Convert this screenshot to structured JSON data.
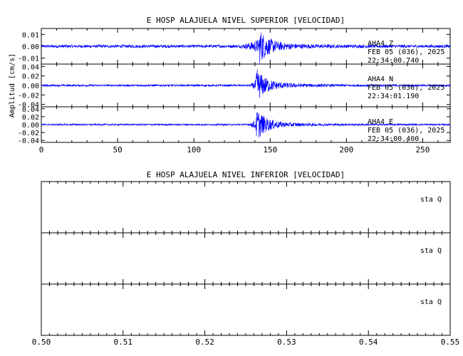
{
  "chart_data": [
    {
      "type": "line",
      "title": "E HOSP ALAJUELA NIVEL SUPERIOR [VELOCIDAD]",
      "ylabel": "Amplitud [cm/s]",
      "xlabel": "",
      "xlim": [
        0,
        268
      ],
      "xticks": [
        "0",
        "50",
        "100",
        "150",
        "200",
        "250"
      ],
      "trace_color": "#0000ff",
      "panels": [
        {
          "channel": "AHA4 Z",
          "date": "FEB 05 (036), 2025",
          "time": "22:34:00.740",
          "ylim": [
            -0.015,
            0.015
          ],
          "yticks": [
            "0.01",
            "0.00",
            "-0.01"
          ],
          "event": {
            "onset_s": 127,
            "peak_s": 143,
            "peak_amp": 0.012,
            "noise_amp": 0.0012,
            "coda_end_s": 190
          }
        },
        {
          "channel": "AHA4 N",
          "date": "FEB 05 (036), 2025",
          "time": "22:34:01.190",
          "ylim": [
            -0.045,
            0.045
          ],
          "yticks": [
            "0.04",
            "0.02",
            "0.00",
            "-0.02",
            "-0.04"
          ],
          "event": {
            "onset_s": 136,
            "peak_s": 141,
            "peak_amp": 0.03,
            "noise_amp": 0.002,
            "coda_end_s": 185
          }
        },
        {
          "channel": "AHA4 E",
          "date": "FEB 05 (036), 2025",
          "time": "22:34:00.400",
          "ylim": [
            -0.045,
            0.045
          ],
          "yticks": [
            "0.04",
            "0.02",
            "0.00",
            "-0.02",
            "-0.04"
          ],
          "event": {
            "onset_s": 135,
            "peak_s": 141,
            "peak_amp": 0.035,
            "noise_amp": 0.002,
            "coda_end_s": 185
          }
        }
      ]
    },
    {
      "type": "line",
      "title": "E HOSP ALAJUELA NIVEL INFERIOR [VELOCIDAD]",
      "xlabel": "",
      "ylabel": "",
      "xlim": [
        0.5,
        0.55
      ],
      "xticks": [
        "0.50",
        "0.51",
        "0.52",
        "0.53",
        "0.54",
        "0.55"
      ],
      "panels": [
        {
          "label": "sta  Q"
        },
        {
          "label": "sta  Q"
        },
        {
          "label": "sta  Q"
        }
      ]
    }
  ]
}
